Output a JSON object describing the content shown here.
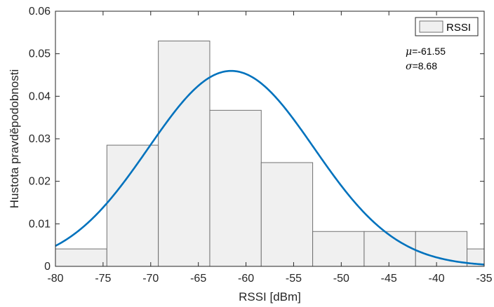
{
  "chart_data": {
    "type": "histogram",
    "xlabel": "RSSI [dBm]",
    "ylabel": "Hustota pravděpodobnosti",
    "xlim": [
      -80,
      -35
    ],
    "ylim": [
      0,
      0.06
    ],
    "xticks": [
      -80,
      -75,
      -70,
      -65,
      -60,
      -55,
      -50,
      -45,
      -40,
      -35
    ],
    "yticks": [
      0,
      0.01,
      0.02,
      0.03,
      0.04,
      0.05,
      0.06
    ],
    "xtick_labels": [
      "-80",
      "-75",
      "-70",
      "-65",
      "-60",
      "-55",
      "-50",
      "-45",
      "-40",
      "-35"
    ],
    "ytick_labels": [
      "0",
      "0.01",
      "0.02",
      "0.03",
      "0.04",
      "0.05",
      "0.06"
    ],
    "bins": [
      {
        "start": -80.0,
        "end": -74.6,
        "value": 0.0041
      },
      {
        "start": -74.6,
        "end": -69.2,
        "value": 0.0285
      },
      {
        "start": -69.2,
        "end": -63.8,
        "value": 0.053
      },
      {
        "start": -63.8,
        "end": -58.4,
        "value": 0.0367
      },
      {
        "start": -58.4,
        "end": -53.0,
        "value": 0.0244
      },
      {
        "start": -53.0,
        "end": -47.6,
        "value": 0.0082
      },
      {
        "start": -47.6,
        "end": -42.2,
        "value": 0.0082
      },
      {
        "start": -42.2,
        "end": -36.8,
        "value": 0.0082
      },
      {
        "start": -36.8,
        "end": -31.4,
        "value": 0.0041
      }
    ],
    "fit": {
      "type": "normal",
      "mu": -61.55,
      "sigma": 8.68
    },
    "legend": {
      "entries": [
        "RSSI"
      ],
      "position": "top-right"
    },
    "annotations": {
      "mu_label": "μ=-61.55",
      "sigma_label": "σ=8.68"
    },
    "grid": false,
    "colors": {
      "bar_fill": "#f0f0f0",
      "bar_edge": "#707070",
      "curve": "#0072bd",
      "axis": "#262626"
    }
  }
}
